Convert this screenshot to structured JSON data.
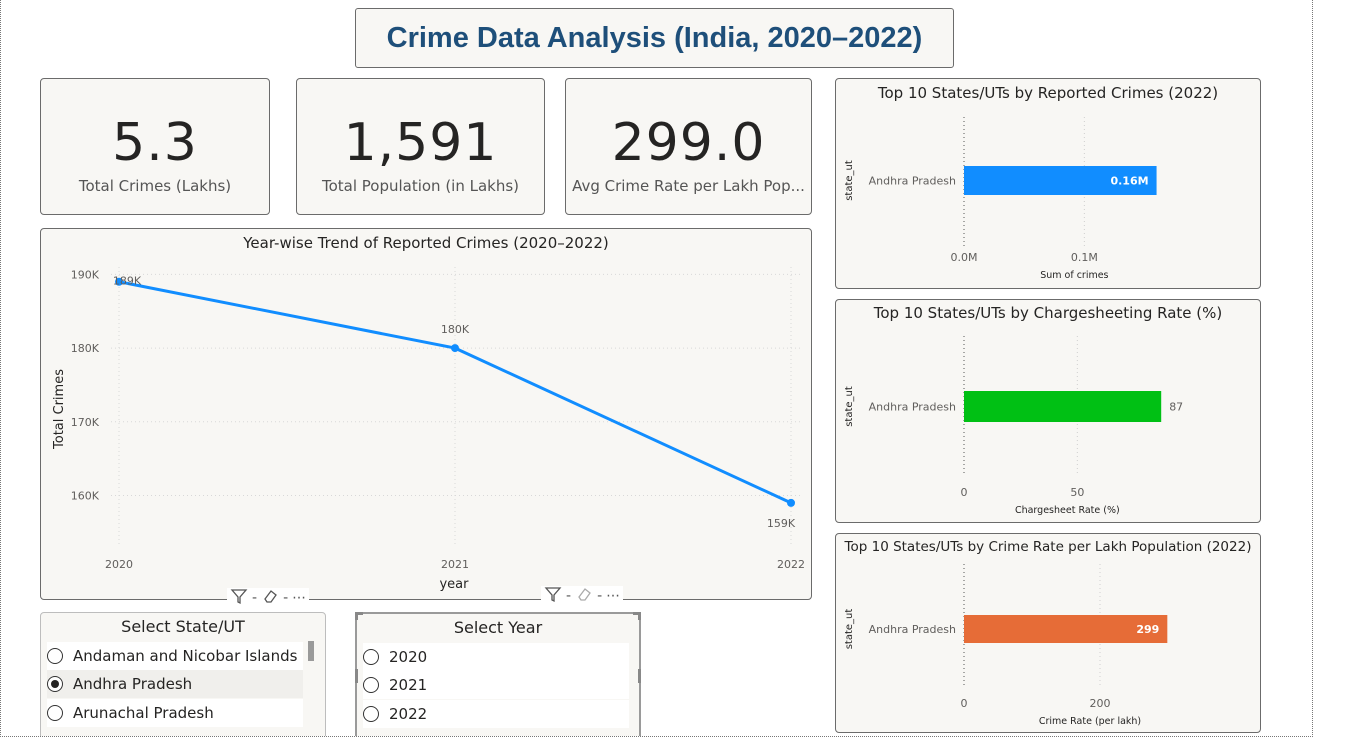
{
  "title": "Crime Data Analysis (India, 2020–2022)",
  "kpis": [
    {
      "value": "5.3",
      "label": "Total Crimes (Lakhs)"
    },
    {
      "value": "1,591",
      "label": "Total Population (in Lakhs)"
    },
    {
      "value": "299.0",
      "label": "Avg Crime Rate per Lakh Pop..."
    }
  ],
  "line_chart": {
    "title": "Year-wise Trend of Reported Crimes (2020–2022)",
    "xlabel": "year",
    "ylabel": "Total Crimes",
    "color": "#118dff"
  },
  "bar1": {
    "title": "Top 10 States/UTs by Reported Crimes (2022)",
    "xlabel": "Sum of crimes",
    "ylabel": "state_ut",
    "color": "#118dff"
  },
  "bar2": {
    "title": "Top 10 States/UTs by Chargesheeting Rate (%)",
    "xlabel": "Chargesheet Rate (%)",
    "ylabel": "state_ut",
    "color": "#00c014"
  },
  "bar3": {
    "title": "Top 10 States/UTs by Crime Rate per Lakh Population (2022)",
    "xlabel": "Crime Rate (per lakh)",
    "ylabel": "state_ut",
    "color": "#e66c37"
  },
  "slicer_state": {
    "title": "Select State/UT",
    "items": [
      {
        "label": "Andaman and Nicobar Islands",
        "selected": false
      },
      {
        "label": "Andhra Pradesh",
        "selected": true
      },
      {
        "label": "Arunachal Pradesh",
        "selected": false
      }
    ]
  },
  "slicer_year": {
    "title": "Select Year",
    "items": [
      {
        "label": "2020",
        "selected": false
      },
      {
        "label": "2021",
        "selected": false
      },
      {
        "label": "2022",
        "selected": false
      }
    ]
  },
  "chart_data": [
    {
      "type": "line",
      "title": "Year-wise Trend of Reported Crimes (2020–2022)",
      "xlabel": "year",
      "ylabel": "Total Crimes",
      "x": [
        "2020",
        "2021",
        "2022"
      ],
      "values": [
        189000,
        180000,
        159000
      ],
      "data_labels": [
        "189K",
        "180K",
        "159K"
      ],
      "yticks": [
        160000,
        170000,
        180000,
        190000
      ],
      "ytick_labels": [
        "160K",
        "170K",
        "180K",
        "190K"
      ],
      "ylim": [
        156000,
        191000
      ]
    },
    {
      "type": "bar",
      "orientation": "horizontal",
      "title": "Top 10 States/UTs by Reported Crimes (2022)",
      "xlabel": "Sum of crimes",
      "ylabel": "state_ut",
      "categories": [
        "Andhra Pradesh"
      ],
      "values": [
        160000
      ],
      "data_labels": [
        "0.16M"
      ],
      "xticks": [
        0,
        100000
      ],
      "xtick_labels": [
        "0.0M",
        "0.1M"
      ],
      "xlim": [
        0,
        226000
      ]
    },
    {
      "type": "bar",
      "orientation": "horizontal",
      "title": "Top 10 States/UTs by Chargesheeting Rate (%)",
      "xlabel": "Chargesheet Rate (%)",
      "ylabel": "state_ut",
      "categories": [
        "Andhra Pradesh"
      ],
      "values": [
        87
      ],
      "data_labels": [
        "87"
      ],
      "xticks": [
        0,
        50
      ],
      "xtick_labels": [
        "0",
        "50"
      ],
      "xlim": [
        0,
        120
      ]
    },
    {
      "type": "bar",
      "orientation": "horizontal",
      "title": "Top 10 States/UTs by Crime Rate per Lakh Population (2022)",
      "xlabel": "Crime Rate (per lakh)",
      "ylabel": "state_ut",
      "categories": [
        "Andhra Pradesh"
      ],
      "values": [
        299
      ],
      "data_labels": [
        "299"
      ],
      "xticks": [
        0,
        200
      ],
      "xtick_labels": [
        "0",
        "200"
      ],
      "xlim": [
        0,
        400
      ]
    }
  ]
}
